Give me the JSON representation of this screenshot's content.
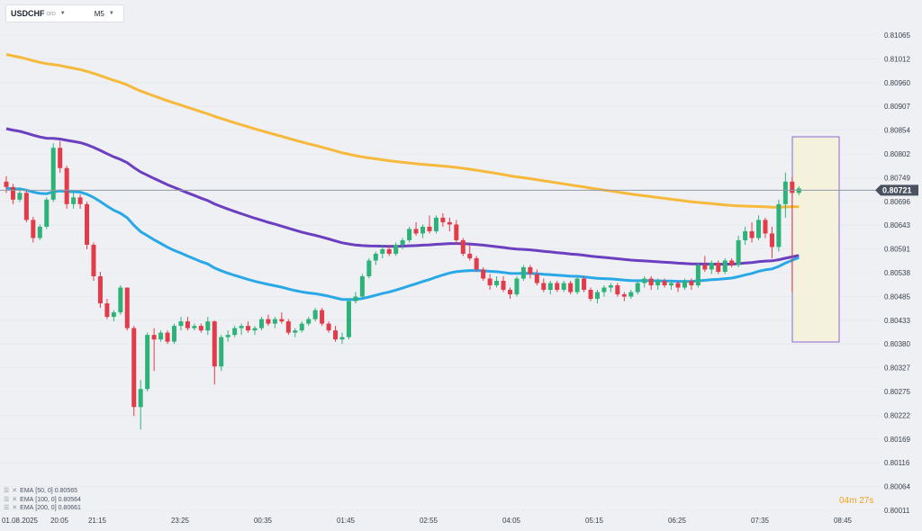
{
  "header": {
    "symbol": "USDCHF",
    "instrument_type": "CFD",
    "timeframe": "M5"
  },
  "indicators": [
    {
      "label": "EMA",
      "params": "[50,  0]",
      "value": "0.80565"
    },
    {
      "label": "EMA",
      "params": "[100,  0]",
      "value": "0.80564"
    },
    {
      "label": "EMA",
      "params": "[200,  0]",
      "value": "0.80661"
    }
  ],
  "countdown": {
    "minutes": "04",
    "m_unit": "m",
    "seconds": "27",
    "s_unit": "s"
  },
  "colors": {
    "background": "#eef0f3",
    "bullish": "#2db37a",
    "bearish": "#e23b4a",
    "ema50": "#29a8e8",
    "ema100": "#6b3fbf",
    "ema200": "#f6b93b",
    "price_line": "#9099a4",
    "highlight_fill": "#f4f2dc",
    "highlight_border": "#8b68d6"
  },
  "chart_data": {
    "type": "candlestick",
    "y_labels": [
      "0.81065",
      "0.81012",
      "0.80960",
      "0.80907",
      "0.80854",
      "0.80802",
      "0.80749",
      "0.80696",
      "0.80643",
      "0.80591",
      "0.80538",
      "0.80485",
      "0.80433",
      "0.80380",
      "0.80327",
      "0.80275",
      "0.80222",
      "0.80169",
      "0.80116",
      "0.80064",
      "0.80011"
    ],
    "x_labels": [
      "01.08.2025",
      "20:05",
      "21:15",
      "23:25",
      "00:35",
      "01:45",
      "02:55",
      "04:05",
      "05:15",
      "06:25",
      "07:35",
      "08:45"
    ],
    "current_price": "0.80721",
    "ylim": [
      0.80011,
      0.81065
    ],
    "ohlc": [
      [
        0.8074,
        0.80752,
        0.80715,
        0.80728
      ],
      [
        0.80728,
        0.80735,
        0.8069,
        0.807
      ],
      [
        0.807,
        0.80725,
        0.80695,
        0.80715
      ],
      [
        0.80715,
        0.8072,
        0.8065,
        0.80655
      ],
      [
        0.80655,
        0.80662,
        0.80605,
        0.80615
      ],
      [
        0.80615,
        0.80645,
        0.8061,
        0.8064
      ],
      [
        0.8064,
        0.80705,
        0.80635,
        0.807
      ],
      [
        0.807,
        0.80825,
        0.80695,
        0.80815
      ],
      [
        0.80815,
        0.8083,
        0.8076,
        0.8077
      ],
      [
        0.8077,
        0.80775,
        0.8068,
        0.8069
      ],
      [
        0.8069,
        0.8072,
        0.8068,
        0.80705
      ],
      [
        0.80705,
        0.80712,
        0.8068,
        0.8069
      ],
      [
        0.8069,
        0.80695,
        0.8059,
        0.806
      ],
      [
        0.806,
        0.80605,
        0.8052,
        0.8053
      ],
      [
        0.8053,
        0.8054,
        0.8046,
        0.8047
      ],
      [
        0.8047,
        0.8048,
        0.80435,
        0.8044
      ],
      [
        0.8044,
        0.80455,
        0.8043,
        0.8045
      ],
      [
        0.8045,
        0.8051,
        0.80445,
        0.80505
      ],
      [
        0.80505,
        0.80505,
        0.8041,
        0.80415
      ],
      [
        0.80415,
        0.8042,
        0.8022,
        0.8024
      ],
      [
        0.8024,
        0.803,
        0.8019,
        0.8028
      ],
      [
        0.8028,
        0.80405,
        0.80275,
        0.804
      ],
      [
        0.804,
        0.80415,
        0.8032,
        0.8039
      ],
      [
        0.8039,
        0.8041,
        0.80385,
        0.80405
      ],
      [
        0.80405,
        0.8041,
        0.8038,
        0.80385
      ],
      [
        0.80385,
        0.80425,
        0.8038,
        0.8042
      ],
      [
        0.8042,
        0.8044,
        0.8041,
        0.8043
      ],
      [
        0.8043,
        0.8044,
        0.8041,
        0.80415
      ],
      [
        0.80415,
        0.80425,
        0.8041,
        0.8042
      ],
      [
        0.8042,
        0.80425,
        0.80405,
        0.8041
      ],
      [
        0.8041,
        0.8044,
        0.804,
        0.8043
      ],
      [
        0.8043,
        0.80432,
        0.8029,
        0.8033
      ],
      [
        0.8033,
        0.804,
        0.8032,
        0.80395
      ],
      [
        0.80395,
        0.8041,
        0.80385,
        0.804
      ],
      [
        0.804,
        0.8042,
        0.80395,
        0.80415
      ],
      [
        0.80415,
        0.80425,
        0.804,
        0.8042
      ],
      [
        0.8042,
        0.8043,
        0.80405,
        0.8041
      ],
      [
        0.8041,
        0.8042,
        0.804,
        0.80415
      ],
      [
        0.80415,
        0.8044,
        0.8041,
        0.80435
      ],
      [
        0.80435,
        0.80445,
        0.8042,
        0.80425
      ],
      [
        0.80425,
        0.8044,
        0.80415,
        0.80435
      ],
      [
        0.80435,
        0.8045,
        0.80425,
        0.8043
      ],
      [
        0.8043,
        0.80435,
        0.804,
        0.80405
      ],
      [
        0.80405,
        0.80415,
        0.80395,
        0.8041
      ],
      [
        0.8041,
        0.8043,
        0.80405,
        0.80425
      ],
      [
        0.80425,
        0.8044,
        0.8042,
        0.80435
      ],
      [
        0.80435,
        0.8046,
        0.8043,
        0.80455
      ],
      [
        0.80455,
        0.8046,
        0.8042,
        0.80425
      ],
      [
        0.80425,
        0.8043,
        0.80405,
        0.8041
      ],
      [
        0.8041,
        0.8042,
        0.80385,
        0.8039
      ],
      [
        0.8039,
        0.80405,
        0.8038,
        0.80395
      ],
      [
        0.80395,
        0.8048,
        0.8039,
        0.80475
      ],
      [
        0.80475,
        0.80495,
        0.8047,
        0.80485
      ],
      [
        0.80485,
        0.80535,
        0.8048,
        0.8053
      ],
      [
        0.8053,
        0.8057,
        0.80525,
        0.80565
      ],
      [
        0.80565,
        0.80585,
        0.80555,
        0.8058
      ],
      [
        0.8058,
        0.806,
        0.8057,
        0.8059
      ],
      [
        0.8059,
        0.806,
        0.80575,
        0.8058
      ],
      [
        0.8058,
        0.80605,
        0.80575,
        0.806
      ],
      [
        0.806,
        0.80615,
        0.8059,
        0.8061
      ],
      [
        0.8061,
        0.8064,
        0.80605,
        0.80635
      ],
      [
        0.80635,
        0.8065,
        0.8062,
        0.80625
      ],
      [
        0.80625,
        0.80645,
        0.80615,
        0.8064
      ],
      [
        0.8064,
        0.80665,
        0.80625,
        0.8063
      ],
      [
        0.8063,
        0.80665,
        0.80625,
        0.8066
      ],
      [
        0.8066,
        0.8067,
        0.8064,
        0.8065
      ],
      [
        0.8065,
        0.8066,
        0.8063,
        0.80645
      ],
      [
        0.80645,
        0.80655,
        0.806,
        0.8061
      ],
      [
        0.8061,
        0.80615,
        0.80575,
        0.8058
      ],
      [
        0.8058,
        0.806,
        0.80565,
        0.8057
      ],
      [
        0.8057,
        0.80575,
        0.8054,
        0.80545
      ],
      [
        0.80545,
        0.8055,
        0.8052,
        0.80525
      ],
      [
        0.80525,
        0.80535,
        0.805,
        0.8051
      ],
      [
        0.8051,
        0.8053,
        0.80505,
        0.8052
      ],
      [
        0.8052,
        0.8053,
        0.80495,
        0.805
      ],
      [
        0.805,
        0.80505,
        0.8048,
        0.8049
      ],
      [
        0.8049,
        0.8053,
        0.80485,
        0.80525
      ],
      [
        0.80525,
        0.80555,
        0.8052,
        0.8055
      ],
      [
        0.8055,
        0.80555,
        0.80525,
        0.80535
      ],
      [
        0.80535,
        0.80545,
        0.8051,
        0.80515
      ],
      [
        0.80515,
        0.80525,
        0.80495,
        0.805
      ],
      [
        0.805,
        0.8052,
        0.8049,
        0.80515
      ],
      [
        0.80515,
        0.8052,
        0.80495,
        0.805
      ],
      [
        0.805,
        0.8052,
        0.80495,
        0.80515
      ],
      [
        0.80515,
        0.8052,
        0.8049,
        0.80495
      ],
      [
        0.80495,
        0.8053,
        0.8049,
        0.80525
      ],
      [
        0.80525,
        0.8053,
        0.80495,
        0.805
      ],
      [
        0.805,
        0.80505,
        0.80475,
        0.8048
      ],
      [
        0.8048,
        0.805,
        0.8047,
        0.80495
      ],
      [
        0.80495,
        0.8051,
        0.80485,
        0.80505
      ],
      [
        0.80505,
        0.80515,
        0.80495,
        0.8051
      ],
      [
        0.8051,
        0.80515,
        0.80485,
        0.8049
      ],
      [
        0.8049,
        0.80495,
        0.80475,
        0.80485
      ],
      [
        0.80485,
        0.805,
        0.8048,
        0.80495
      ],
      [
        0.80495,
        0.8052,
        0.8049,
        0.80515
      ],
      [
        0.80515,
        0.8053,
        0.80505,
        0.80525
      ],
      [
        0.80525,
        0.8053,
        0.805,
        0.8051
      ],
      [
        0.8051,
        0.80525,
        0.805,
        0.8052
      ],
      [
        0.8052,
        0.80525,
        0.80505,
        0.8051
      ],
      [
        0.8051,
        0.8052,
        0.805,
        0.80515
      ],
      [
        0.80515,
        0.8052,
        0.80495,
        0.80505
      ],
      [
        0.80505,
        0.80525,
        0.805,
        0.8052
      ],
      [
        0.8052,
        0.80525,
        0.805,
        0.8051
      ],
      [
        0.8051,
        0.8056,
        0.80505,
        0.80555
      ],
      [
        0.80555,
        0.80575,
        0.8054,
        0.80545
      ],
      [
        0.80545,
        0.80565,
        0.80535,
        0.8056
      ],
      [
        0.8056,
        0.80565,
        0.80535,
        0.8054
      ],
      [
        0.8054,
        0.8057,
        0.80535,
        0.80565
      ],
      [
        0.80565,
        0.8057,
        0.8055,
        0.80555
      ],
      [
        0.80555,
        0.8062,
        0.8055,
        0.8061
      ],
      [
        0.8061,
        0.8064,
        0.806,
        0.8063
      ],
      [
        0.8063,
        0.8065,
        0.80605,
        0.80615
      ],
      [
        0.80615,
        0.80665,
        0.8061,
        0.80655
      ],
      [
        0.80655,
        0.8066,
        0.80615,
        0.80625
      ],
      [
        0.80625,
        0.8064,
        0.8057,
        0.80595
      ],
      [
        0.80595,
        0.807,
        0.80585,
        0.8069
      ],
      [
        0.8069,
        0.8076,
        0.8066,
        0.8074
      ],
      [
        0.8074,
        0.8075,
        0.80495,
        0.80715
      ],
      [
        0.80715,
        0.8073,
        0.8071,
        0.80725
      ]
    ]
  }
}
